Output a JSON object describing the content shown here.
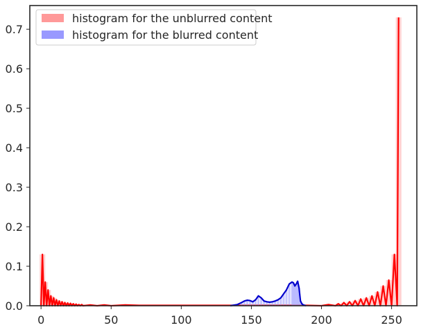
{
  "chart_data": {
    "type": "area",
    "title": "",
    "xlabel": "",
    "ylabel": "",
    "xlim": [
      -8,
      268
    ],
    "ylim": [
      0,
      0.76
    ],
    "grid": false,
    "x_ticks": [
      0,
      50,
      100,
      150,
      200,
      250
    ],
    "x_tick_labels": [
      "0",
      "50",
      "100",
      "150",
      "200",
      "250"
    ],
    "y_ticks": [
      0.0,
      0.1,
      0.2,
      0.3,
      0.4,
      0.5,
      0.6,
      0.7
    ],
    "y_tick_labels": [
      "0.0",
      "0.1",
      "0.2",
      "0.3",
      "0.4",
      "0.5",
      "0.6",
      "0.7"
    ],
    "legend": {
      "position": "top-left",
      "entries": [
        {
          "label": "histogram for the unblurred content",
          "color": "#ff9999"
        },
        {
          "label": "histogram for the blurred content",
          "color": "#9999ff"
        }
      ]
    },
    "series": [
      {
        "name": "histogram for the unblurred content",
        "color": "#ff0000",
        "fill_color": "#ff9999",
        "x": [
          0,
          1,
          2,
          3,
          4,
          5,
          6,
          7,
          8,
          9,
          10,
          11,
          12,
          13,
          14,
          15,
          16,
          17,
          18,
          19,
          20,
          21,
          22,
          23,
          24,
          25,
          26,
          27,
          28,
          29,
          30,
          35,
          40,
          45,
          50,
          60,
          70,
          80,
          90,
          100,
          110,
          120,
          130,
          140,
          150,
          160,
          170,
          180,
          190,
          200,
          205,
          210,
          212,
          214,
          216,
          218,
          220,
          222,
          224,
          226,
          228,
          230,
          232,
          234,
          236,
          238,
          240,
          242,
          244,
          246,
          248,
          250,
          252,
          254,
          255
        ],
        "values": [
          0.0,
          0.13,
          0.0,
          0.06,
          0.0,
          0.04,
          0.0,
          0.025,
          0.0,
          0.02,
          0.0,
          0.015,
          0.0,
          0.012,
          0.0,
          0.01,
          0.0,
          0.008,
          0.0,
          0.007,
          0.0,
          0.006,
          0.0,
          0.005,
          0.0,
          0.004,
          0.0,
          0.003,
          0.0,
          0.003,
          0.0,
          0.002,
          0.0,
          0.002,
          0.0,
          0.002,
          0.001,
          0.001,
          0.001,
          0.001,
          0.001,
          0.001,
          0.001,
          0.001,
          0.001,
          0.001,
          0.001,
          0.001,
          0.001,
          0.0,
          0.003,
          0.0,
          0.005,
          0.0,
          0.008,
          0.0,
          0.01,
          0.0,
          0.013,
          0.0,
          0.017,
          0.0,
          0.02,
          0.0,
          0.025,
          0.0,
          0.035,
          0.0,
          0.05,
          0.0,
          0.065,
          0.0,
          0.13,
          0.0,
          0.73
        ]
      },
      {
        "name": "histogram for the blurred content",
        "color": "#0000cc",
        "fill_color": "#9999ff",
        "x": [
          135,
          140,
          143,
          145,
          147,
          149,
          151,
          153,
          155,
          157,
          159,
          161,
          163,
          165,
          167,
          169,
          171,
          173,
          175,
          177,
          179,
          180,
          181,
          182,
          183,
          184,
          185,
          186,
          187,
          188,
          189
        ],
        "values": [
          0.0,
          0.003,
          0.008,
          0.012,
          0.014,
          0.013,
          0.01,
          0.015,
          0.025,
          0.02,
          0.012,
          0.01,
          0.009,
          0.01,
          0.012,
          0.015,
          0.02,
          0.03,
          0.04,
          0.055,
          0.06,
          0.058,
          0.05,
          0.055,
          0.062,
          0.045,
          0.012,
          0.005,
          0.002,
          0.001,
          0.0
        ]
      }
    ]
  }
}
